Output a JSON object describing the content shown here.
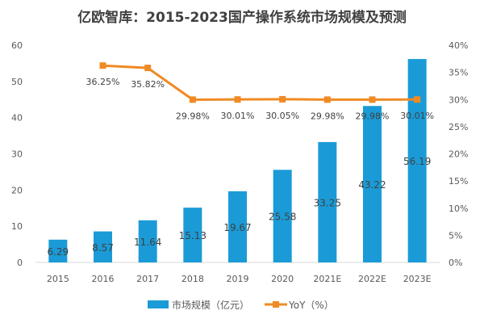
{
  "chart_data": {
    "type": "bar+line",
    "title": "亿欧智库：2015-2023国产操作系统市场规模及预测",
    "categories": [
      "2015",
      "2016",
      "2017",
      "2018",
      "2019",
      "2020",
      "2021E",
      "2022E",
      "2023E"
    ],
    "series": [
      {
        "name": "市场规模（亿元）",
        "type": "bar",
        "axis": "left",
        "color": "#1a9bd7",
        "values": [
          6.29,
          8.57,
          11.64,
          15.13,
          19.67,
          25.58,
          33.25,
          43.22,
          56.19
        ],
        "labels": [
          "6.29",
          "8.57",
          "11.64",
          "15.13",
          "19.67",
          "25.58",
          "33.25",
          "43.22",
          "56.19"
        ]
      },
      {
        "name": "YoY（%）",
        "type": "line",
        "axis": "right",
        "color": "#f08a24",
        "values": [
          null,
          36.25,
          35.82,
          29.98,
          30.01,
          30.05,
          29.98,
          29.98,
          30.01
        ],
        "labels": [
          "",
          "36.25%",
          "35.82%",
          "29.98%",
          "30.01%",
          "30.05%",
          "29.98%",
          "29.98%",
          "30.01%"
        ]
      }
    ],
    "ylim_left": [
      0,
      60
    ],
    "yticks_left": [
      "0",
      "10",
      "20",
      "30",
      "40",
      "50",
      "60"
    ],
    "ylim_right": [
      0,
      40
    ],
    "yticks_right": [
      "0%",
      "5%",
      "10%",
      "15%",
      "20%",
      "25%",
      "30%",
      "35%",
      "40%"
    ],
    "grid": false,
    "legend": "bottom"
  }
}
